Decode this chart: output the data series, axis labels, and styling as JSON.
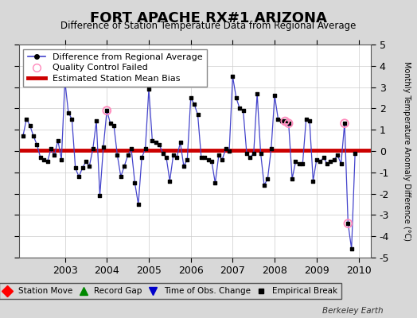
{
  "title": "FORT APACHE RX#1 ARIZONA",
  "subtitle": "Difference of Station Temperature Data from Regional Average",
  "ylabel": "Monthly Temperature Anomaly Difference (°C)",
  "watermark": "Berkeley Earth",
  "xlim": [
    2001.9,
    2010.3
  ],
  "ylim": [
    -5,
    5
  ],
  "yticks": [
    -5,
    -4,
    -3,
    -2,
    -1,
    0,
    1,
    2,
    3,
    4,
    5
  ],
  "xticks": [
    2003,
    2004,
    2005,
    2006,
    2007,
    2008,
    2009,
    2010
  ],
  "bias_value": 0.05,
  "background_color": "#d8d8d8",
  "plot_bg_color": "#ffffff",
  "line_color": "#4444cc",
  "marker_color": "#000000",
  "bias_color": "#cc0000",
  "qc_color": "#ff88bb",
  "time_series": [
    [
      2002.0,
      0.7
    ],
    [
      2002.083,
      1.5
    ],
    [
      2002.167,
      1.2
    ],
    [
      2002.25,
      0.7
    ],
    [
      2002.333,
      0.3
    ],
    [
      2002.417,
      -0.3
    ],
    [
      2002.5,
      -0.4
    ],
    [
      2002.583,
      -0.5
    ],
    [
      2002.667,
      0.1
    ],
    [
      2002.75,
      -0.2
    ],
    [
      2002.833,
      0.5
    ],
    [
      2002.917,
      -0.4
    ],
    [
      2003.0,
      3.3
    ],
    [
      2003.083,
      1.8
    ],
    [
      2003.167,
      1.5
    ],
    [
      2003.25,
      -0.8
    ],
    [
      2003.333,
      -1.2
    ],
    [
      2003.417,
      -0.8
    ],
    [
      2003.5,
      -0.5
    ],
    [
      2003.583,
      -0.7
    ],
    [
      2003.667,
      0.1
    ],
    [
      2003.75,
      1.4
    ],
    [
      2003.833,
      -2.1
    ],
    [
      2003.917,
      0.2
    ],
    [
      2004.0,
      1.9
    ],
    [
      2004.083,
      1.3
    ],
    [
      2004.167,
      1.2
    ],
    [
      2004.25,
      -0.2
    ],
    [
      2004.333,
      -1.2
    ],
    [
      2004.417,
      -0.7
    ],
    [
      2004.5,
      -0.2
    ],
    [
      2004.583,
      0.1
    ],
    [
      2004.667,
      -1.5
    ],
    [
      2004.75,
      -2.5
    ],
    [
      2004.833,
      -0.3
    ],
    [
      2004.917,
      0.1
    ],
    [
      2005.0,
      2.9
    ],
    [
      2005.083,
      0.5
    ],
    [
      2005.167,
      0.4
    ],
    [
      2005.25,
      0.3
    ],
    [
      2005.333,
      -0.1
    ],
    [
      2005.417,
      -0.3
    ],
    [
      2005.5,
      -1.4
    ],
    [
      2005.583,
      -0.2
    ],
    [
      2005.667,
      -0.3
    ],
    [
      2005.75,
      0.4
    ],
    [
      2005.833,
      -0.7
    ],
    [
      2005.917,
      -0.4
    ],
    [
      2006.0,
      2.5
    ],
    [
      2006.083,
      2.2
    ],
    [
      2006.167,
      1.7
    ],
    [
      2006.25,
      -0.3
    ],
    [
      2006.333,
      -0.3
    ],
    [
      2006.417,
      -0.4
    ],
    [
      2006.5,
      -0.5
    ],
    [
      2006.583,
      -1.5
    ],
    [
      2006.667,
      -0.2
    ],
    [
      2006.75,
      -0.4
    ],
    [
      2006.833,
      0.1
    ],
    [
      2006.917,
      0.0
    ],
    [
      2007.0,
      3.5
    ],
    [
      2007.083,
      2.5
    ],
    [
      2007.167,
      2.0
    ],
    [
      2007.25,
      1.9
    ],
    [
      2007.333,
      -0.1
    ],
    [
      2007.417,
      -0.3
    ],
    [
      2007.5,
      -0.1
    ],
    [
      2007.583,
      2.7
    ],
    [
      2007.667,
      -0.1
    ],
    [
      2007.75,
      -1.6
    ],
    [
      2007.833,
      -1.3
    ],
    [
      2007.917,
      0.1
    ],
    [
      2008.0,
      2.6
    ],
    [
      2008.083,
      1.5
    ],
    [
      2008.167,
      1.4
    ],
    [
      2008.25,
      1.4
    ],
    [
      2008.333,
      1.3
    ],
    [
      2008.417,
      -1.3
    ],
    [
      2008.5,
      -0.5
    ],
    [
      2008.583,
      -0.6
    ],
    [
      2008.667,
      -0.6
    ],
    [
      2008.75,
      1.5
    ],
    [
      2008.833,
      1.4
    ],
    [
      2008.917,
      -1.4
    ],
    [
      2009.0,
      -0.4
    ],
    [
      2009.083,
      -0.5
    ],
    [
      2009.167,
      -0.3
    ],
    [
      2009.25,
      -0.6
    ],
    [
      2009.333,
      -0.5
    ],
    [
      2009.417,
      -0.4
    ],
    [
      2009.5,
      -0.2
    ],
    [
      2009.583,
      -0.6
    ],
    [
      2009.667,
      1.3
    ],
    [
      2009.75,
      -3.4
    ],
    [
      2009.833,
      -4.6
    ],
    [
      2009.917,
      -0.1
    ]
  ],
  "qc_failed": [
    [
      2003.0,
      3.3
    ],
    [
      2004.0,
      1.9
    ],
    [
      2008.25,
      1.4
    ],
    [
      2008.333,
      1.3
    ],
    [
      2009.667,
      1.3
    ],
    [
      2009.75,
      -3.4
    ]
  ]
}
